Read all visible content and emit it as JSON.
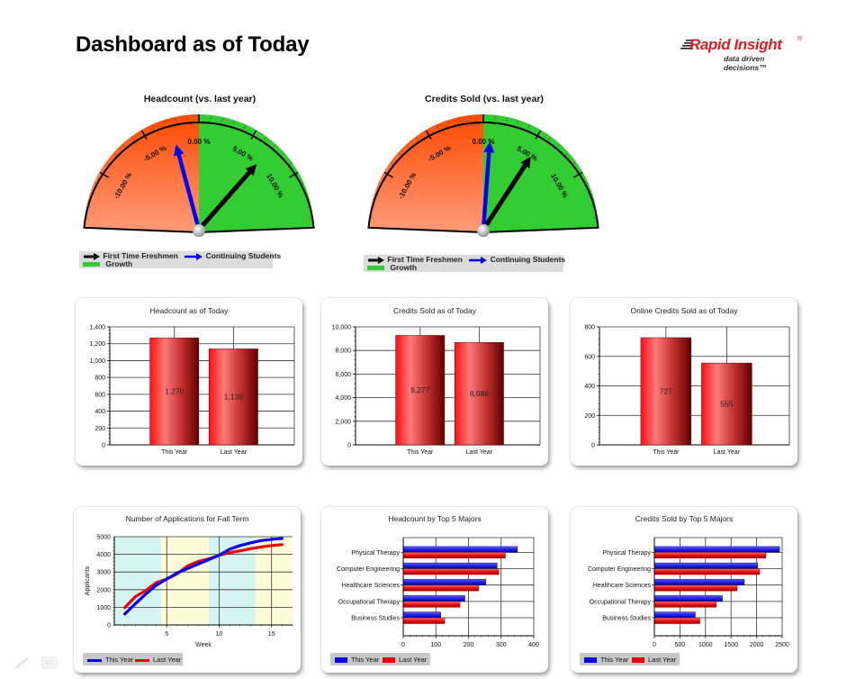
{
  "page": {
    "title": "Dashboard as of Today"
  },
  "logo": {
    "brand": "Rapid Insight",
    "registered": "®",
    "tagline": "data driven decisions™"
  },
  "colors": {
    "this_year": "#0000ee",
    "last_year": "#ee0000",
    "growth": "#33cc33",
    "decline_top": "#ff4a00",
    "decline_bottom": "#ff9a7a",
    "bar_red": "#e01010",
    "panel_cyan": "#d6f4f2",
    "panel_yellow": "#fffdd8"
  },
  "gauges": [
    {
      "title": "Headcount (vs. last year)",
      "tick_labels": [
        "-10.00 %",
        "-5.00 %",
        "0.00 %",
        "5.00 %",
        "10.00 %"
      ],
      "needles": {
        "first_time_freshmen": 6.9,
        "continuing_students": -2.5
      },
      "legend": {
        "freshmen": "First Time Freshmen",
        "continuing": "Continuing Students",
        "growth": "Growth"
      }
    },
    {
      "title": "Credits Sold (vs. last year)",
      "tick_labels": [
        "-10.00 %",
        "-5.00 %",
        "0.00 %",
        "5.00 %",
        "10.00 %"
      ],
      "needles": {
        "first_time_freshmen": 5.5,
        "continuing_students": 0.7
      },
      "legend": {
        "freshmen": "First Time Freshmen",
        "continuing": "Continuing Students",
        "growth": "Growth"
      }
    }
  ],
  "cards": {
    "headcount_today": {
      "title": "Headcount as of Today"
    },
    "credits_today": {
      "title": "Credits Sold as of Today"
    },
    "online_credits_today": {
      "title": "Online Credits Sold as of Today"
    },
    "applications": {
      "title": "Number of Applications for Fall Term",
      "legend_this": "This Year",
      "legend_last": "Last Year"
    },
    "headcount_majors": {
      "title": "Headcount by Top 5 Majors",
      "legend_this": "This Year",
      "legend_last": "Last Year"
    },
    "credits_majors": {
      "title": "Credits Sold by Top 5 Majors",
      "legend_this": "This Year",
      "legend_last": "Last Year"
    }
  },
  "chart_data": [
    {
      "type": "gauge",
      "title": "Headcount (vs. last year)",
      "range": [
        -15,
        15
      ],
      "unit": "%",
      "ticks": [
        -10,
        -5,
        0,
        5,
        10
      ],
      "series": [
        {
          "name": "First Time Freshmen",
          "value": 6.9,
          "color": "#000000"
        },
        {
          "name": "Continuing Students",
          "value": -2.5,
          "color": "#0000ee"
        }
      ],
      "bands": [
        {
          "name": "Decline",
          "from": -15,
          "to": 0
        },
        {
          "name": "Growth",
          "from": 0,
          "to": 15
        }
      ]
    },
    {
      "type": "gauge",
      "title": "Credits Sold (vs. last year)",
      "range": [
        -15,
        15
      ],
      "unit": "%",
      "ticks": [
        -10,
        -5,
        0,
        5,
        10
      ],
      "series": [
        {
          "name": "First Time Freshmen",
          "value": 5.5,
          "color": "#000000"
        },
        {
          "name": "Continuing Students",
          "value": 0.7,
          "color": "#0000ee"
        }
      ],
      "bands": [
        {
          "name": "Decline",
          "from": -15,
          "to": 0
        },
        {
          "name": "Growth",
          "from": 0,
          "to": 15
        }
      ]
    },
    {
      "type": "bar",
      "title": "Headcount as of Today",
      "categories": [
        "This Year",
        "Last Year"
      ],
      "values": [
        1270,
        1139
      ],
      "labels": [
        "1,270",
        "1,139"
      ],
      "yticks": [
        "0",
        "200",
        "400",
        "600",
        "800",
        "1,000",
        "1,200",
        "1,400"
      ],
      "ylim": [
        0,
        1400
      ],
      "xlabel": "",
      "ylabel": ""
    },
    {
      "type": "bar",
      "title": "Credits Sold as of Today",
      "categories": [
        "This Year",
        "Last Year"
      ],
      "values": [
        9277,
        8686
      ],
      "labels": [
        "9,277",
        "8,686"
      ],
      "yticks": [
        "0",
        "2,000",
        "4,000",
        "6,000",
        "8,000",
        "10,000"
      ],
      "ylim": [
        0,
        10000
      ],
      "xlabel": "",
      "ylabel": ""
    },
    {
      "type": "bar",
      "title": "Online Credits Sold as of Today",
      "categories": [
        "This Year",
        "Last Year"
      ],
      "values": [
        727,
        555
      ],
      "labels": [
        "727",
        "555"
      ],
      "yticks": [
        "0",
        "200",
        "400",
        "600",
        "800"
      ],
      "ylim": [
        0,
        800
      ],
      "xlabel": "",
      "ylabel": ""
    },
    {
      "type": "line",
      "title": "Number of Applications for Fall Term",
      "xlabel": "Week",
      "ylabel": "Applicants",
      "x": [
        1,
        2,
        3,
        4,
        5,
        6,
        7,
        8,
        9,
        10,
        11,
        12,
        13,
        14,
        15,
        16
      ],
      "series": [
        {
          "name": "This Year",
          "values": [
            620,
            1200,
            1750,
            2250,
            2600,
            2950,
            3200,
            3450,
            3700,
            3950,
            4300,
            4500,
            4650,
            4780,
            4850,
            4900
          ]
        },
        {
          "name": "Last Year",
          "values": [
            980,
            1600,
            1950,
            2400,
            2600,
            2900,
            3350,
            3600,
            3750,
            3950,
            4100,
            4200,
            4320,
            4420,
            4500,
            4550
          ]
        }
      ],
      "xticks": [
        "5",
        "10",
        "15"
      ],
      "yticks": [
        "0",
        "1000",
        "2000",
        "3000",
        "4000",
        "5000"
      ],
      "xlim": [
        0,
        17
      ],
      "ylim": [
        0,
        5000
      ],
      "shaded_bands": [
        {
          "from": 0,
          "to": 4.5,
          "color": "#d6f4f2"
        },
        {
          "from": 4.5,
          "to": 9,
          "color": "#fffdd8"
        },
        {
          "from": 9,
          "to": 13.5,
          "color": "#d6f4f2"
        },
        {
          "from": 13.5,
          "to": 17,
          "color": "#fffdd8"
        }
      ],
      "legend_position": "bottom-left",
      "grid": true
    },
    {
      "type": "bar",
      "orientation": "horizontal",
      "title": "Headcount by Top 5 Majors",
      "categories": [
        "Physical Therapy",
        "Computer Engineering",
        "Healthcare Sciences",
        "Occupational Therapy",
        "Business Studies"
      ],
      "series": [
        {
          "name": "This Year",
          "values": [
            350,
            288,
            253,
            189,
            115
          ]
        },
        {
          "name": "Last Year",
          "values": [
            313,
            293,
            231,
            174,
            127
          ]
        }
      ],
      "xticks": [
        "0",
        "100",
        "200",
        "300",
        "400"
      ],
      "xlim": [
        0,
        400
      ],
      "legend_position": "bottom-left"
    },
    {
      "type": "bar",
      "orientation": "horizontal",
      "title": "Credits Sold by Top 5 Majors",
      "categories": [
        "Physical Therapy",
        "Computer Engineering",
        "Healthcare Sciences",
        "Occupational Therapy",
        "Business Studies"
      ],
      "series": [
        {
          "name": "This Year",
          "values": [
            2450,
            2020,
            1760,
            1330,
            800
          ]
        },
        {
          "name": "Last Year",
          "values": [
            2180,
            2060,
            1620,
            1210,
            890
          ]
        }
      ],
      "xticks": [
        "0",
        "500",
        "1000",
        "1500",
        "2000",
        "2500"
      ],
      "xlim": [
        0,
        2500
      ],
      "legend_position": "bottom-left"
    }
  ]
}
